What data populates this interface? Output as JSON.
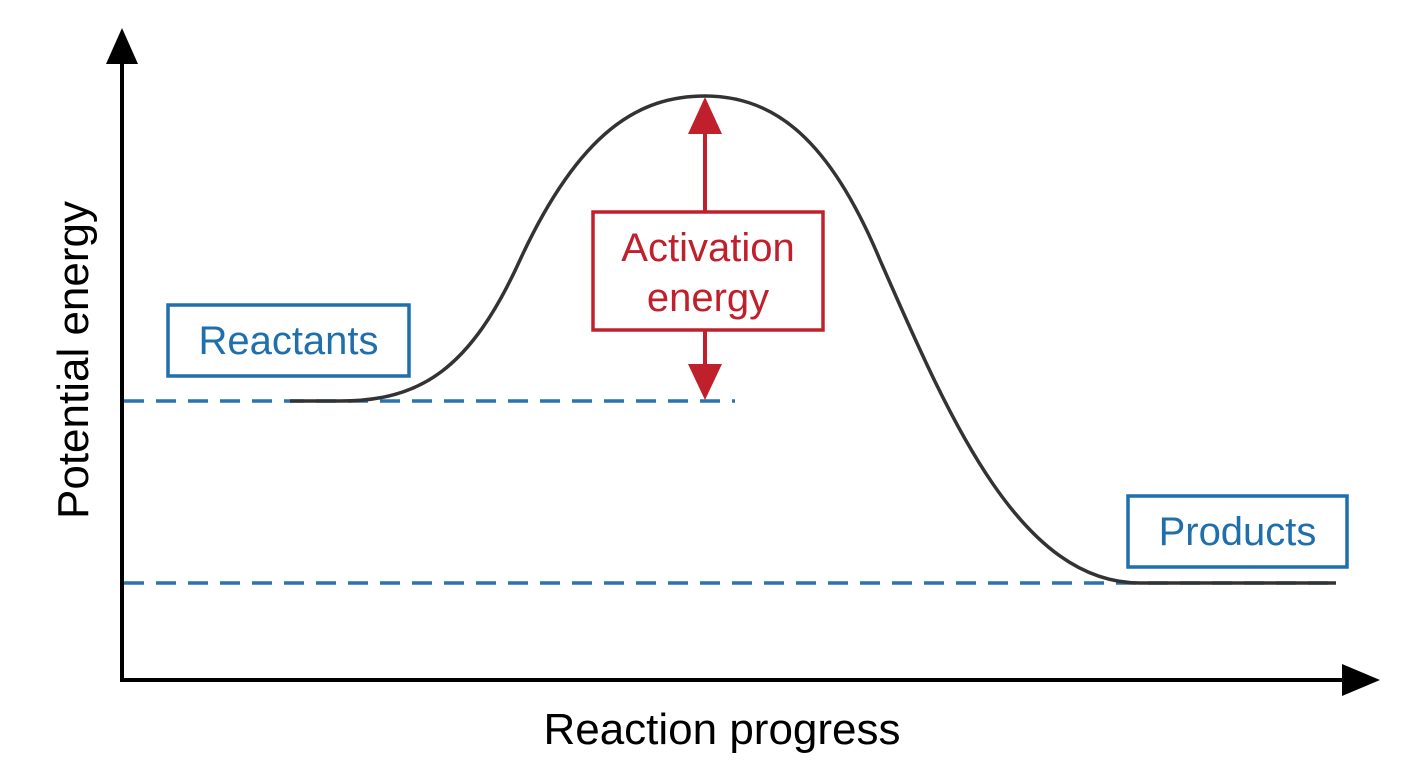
{
  "axes": {
    "x_label": "Reaction progress",
    "y_label": "Potential energy"
  },
  "labels": {
    "reactants": "Reactants",
    "products": "Products",
    "activation_line1": "Activation",
    "activation_line2": "energy"
  },
  "colors": {
    "axis": "#000000",
    "curve": "#333333",
    "level_line": "#2a72b0",
    "level_box": "#1f6fad",
    "activation": "#c0202b"
  }
}
